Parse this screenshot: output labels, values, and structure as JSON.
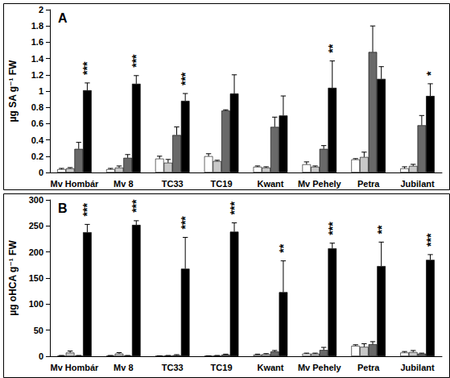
{
  "chart_data": [
    {
      "type": "bar",
      "panel_label": "A",
      "ylabel": "µg SA g⁻¹ FW",
      "categories": [
        "Mv Hombár",
        "Mv 8",
        "TC33",
        "TC19",
        "Kwant",
        "Mv Pehely",
        "Petra",
        "Jubilant"
      ],
      "ylim": [
        0,
        2
      ],
      "yticks": [
        0,
        0.2,
        0.4,
        0.6,
        0.8,
        1,
        1.2,
        1.4,
        1.6,
        1.8,
        2
      ],
      "grid": false,
      "series": [
        {
          "color": "#ffffff",
          "values": [
            0.04,
            0.04,
            0.17,
            0.2,
            0.07,
            0.1,
            0.16,
            0.05
          ],
          "errors": [
            0.01,
            0.01,
            0.03,
            0.03,
            0.01,
            0.03,
            0.01,
            0.02
          ]
        },
        {
          "color": "#c8c8c8",
          "values": [
            0.05,
            0.06,
            0.12,
            0.14,
            0.06,
            0.07,
            0.19,
            0.08
          ],
          "errors": [
            0.01,
            0.02,
            0.04,
            0.01,
            0.01,
            0.01,
            0.06,
            0.02
          ]
        },
        {
          "color": "#696969",
          "values": [
            0.29,
            0.18,
            0.46,
            0.76,
            0.56,
            0.29,
            1.48,
            0.58
          ],
          "errors": [
            0.08,
            0.04,
            0.1,
            0.01,
            0.12,
            0.04,
            0.32,
            0.12
          ]
        },
        {
          "color": "#000000",
          "values": [
            1.01,
            1.09,
            0.88,
            0.97,
            0.7,
            1.04,
            1.15,
            0.94
          ],
          "errors": [
            0.09,
            0.1,
            0.09,
            0.23,
            0.24,
            0.33,
            0.15,
            0.15
          ],
          "significance": [
            "***",
            "***",
            "***",
            null,
            null,
            "**",
            null,
            "*"
          ]
        }
      ]
    },
    {
      "type": "bar",
      "panel_label": "B",
      "ylabel": "µg oHCA g⁻¹ FW",
      "categories": [
        "Mv Hombár",
        "Mv 8",
        "TC33",
        "TC19",
        "Kwant",
        "Mv Pehely",
        "Petra",
        "Jubilant"
      ],
      "ylim": [
        0,
        300
      ],
      "yticks": [
        0,
        50,
        100,
        150,
        200,
        250,
        300
      ],
      "grid": false,
      "series": [
        {
          "color": "#ffffff",
          "values": [
            1,
            1,
            0.5,
            0.5,
            3,
            5,
            20,
            7
          ],
          "errors": [
            0.5,
            0.5,
            0.3,
            0.3,
            1,
            1,
            2,
            2
          ]
        },
        {
          "color": "#c8c8c8",
          "values": [
            7,
            5,
            1,
            1,
            4,
            5,
            18,
            8
          ],
          "errors": [
            3,
            2,
            0.5,
            0.5,
            1,
            1,
            6,
            3
          ]
        },
        {
          "color": "#696969",
          "values": [
            1,
            1,
            2,
            3,
            9,
            12,
            23,
            5
          ],
          "errors": [
            0.5,
            0.5,
            1,
            1,
            2,
            5,
            5,
            1
          ]
        },
        {
          "color": "#000000",
          "values": [
            238,
            252,
            168,
            239,
            123,
            207,
            173,
            185
          ],
          "errors": [
            15,
            8,
            60,
            17,
            60,
            10,
            46,
            10
          ],
          "significance": [
            "***",
            "***",
            "***",
            "***",
            "**",
            "***",
            "**",
            "***"
          ]
        }
      ]
    }
  ]
}
